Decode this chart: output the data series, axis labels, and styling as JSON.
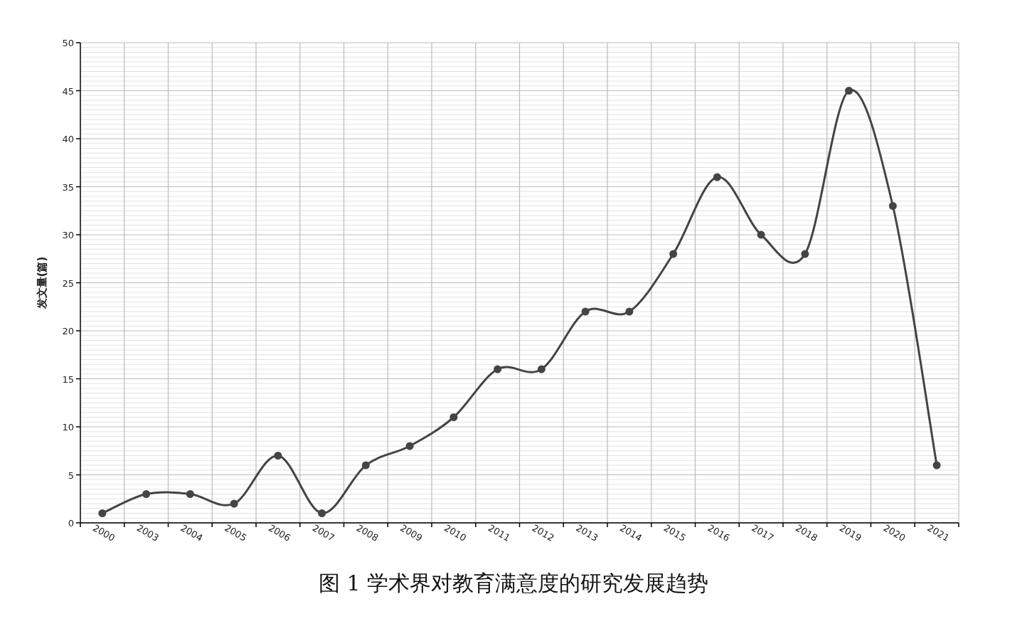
{
  "chart_data": {
    "type": "line",
    "title": "图 1 学术界对教育满意度的研究发展趋势",
    "ylabel": "发文量(篇)",
    "categories": [
      "2000",
      "2003",
      "2004",
      "2005",
      "2006",
      "2007",
      "2008",
      "2009",
      "2010",
      "2011",
      "2012",
      "2013",
      "2014",
      "2015",
      "2016",
      "2017",
      "2018",
      "2019",
      "2020",
      "2021"
    ],
    "values": [
      1,
      3,
      3,
      2,
      7,
      1,
      6,
      8,
      11,
      16,
      16,
      22,
      22,
      28,
      36,
      30,
      28,
      45,
      33,
      6
    ],
    "color": "#444444",
    "ylim": [
      0,
      50
    ],
    "yticks": [
      0,
      5,
      10,
      15,
      20,
      25,
      30,
      35,
      40,
      45,
      50
    ],
    "grid": true,
    "marker": "circle",
    "line_style": "solid"
  }
}
